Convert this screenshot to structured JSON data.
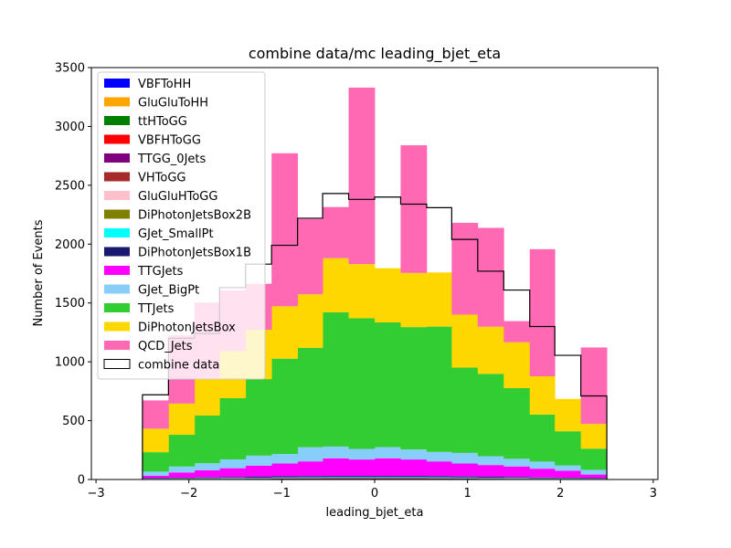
{
  "chart_data": {
    "type": "bar",
    "title": "combine data/mc leading_bjet_eta",
    "xlabel": "leading_bjet_eta",
    "ylabel": "Number of Events",
    "xlim": [
      -3.05,
      3.05
    ],
    "ylim": [
      0,
      3500
    ],
    "xticks": [
      -3,
      -2,
      -1,
      0,
      1,
      2,
      3
    ],
    "xtick_labels": [
      "−3",
      "−2",
      "−1",
      "0",
      "1",
      "2",
      "3"
    ],
    "yticks": [
      0,
      500,
      1000,
      1500,
      2000,
      2500,
      3000,
      3500
    ],
    "ytick_labels": [
      "0",
      "500",
      "1000",
      "1500",
      "2000",
      "2500",
      "3000",
      "3500"
    ],
    "bin_edges": [
      -2.5,
      -2.22,
      -1.94,
      -1.67,
      -1.39,
      -1.11,
      -0.83,
      -0.56,
      -0.28,
      0.0,
      0.28,
      0.56,
      0.83,
      1.11,
      1.39,
      1.67,
      1.94,
      2.22,
      2.5
    ],
    "stacked": true,
    "legend_position": "upper-left",
    "series": [
      {
        "name": "VBFToHH",
        "color": "#0000ff",
        "values": [
          0,
          0,
          0,
          0,
          0,
          0,
          0,
          0,
          0,
          0,
          0,
          0,
          0,
          0,
          0,
          0,
          0,
          0
        ]
      },
      {
        "name": "GluGluToHH",
        "color": "#ffa500",
        "values": [
          0,
          0,
          0,
          0,
          0,
          0,
          0,
          0,
          0,
          0,
          0,
          0,
          0,
          0,
          0,
          0,
          0,
          0
        ]
      },
      {
        "name": "ttHToGG",
        "color": "#008000",
        "values": [
          0,
          0,
          0,
          0,
          0,
          0,
          0,
          0,
          0,
          0,
          0,
          0,
          0,
          0,
          0,
          0,
          0,
          0
        ]
      },
      {
        "name": "VBFHToGG",
        "color": "#ff0000",
        "values": [
          0,
          0,
          0,
          0,
          0,
          0,
          0,
          0,
          0,
          0,
          0,
          0,
          0,
          0,
          0,
          0,
          0,
          0
        ]
      },
      {
        "name": "TTGG_0Jets",
        "color": "#800080",
        "values": [
          3,
          4,
          5,
          6,
          7,
          8,
          9,
          10,
          10,
          10,
          10,
          9,
          8,
          7,
          6,
          5,
          4,
          3
        ]
      },
      {
        "name": "VHToGG",
        "color": "#a52a2a",
        "values": [
          0,
          0,
          0,
          0,
          0,
          0,
          0,
          0,
          0,
          0,
          0,
          0,
          0,
          0,
          0,
          0,
          0,
          0
        ]
      },
      {
        "name": "GluGluHToGG",
        "color": "#ffc0cb",
        "values": [
          1,
          1,
          1,
          1,
          1,
          1,
          1,
          1,
          1,
          1,
          1,
          1,
          1,
          1,
          1,
          1,
          1,
          1
        ]
      },
      {
        "name": "DiPhotonJetsBox2B",
        "color": "#808000",
        "values": [
          2,
          2,
          3,
          3,
          3,
          4,
          4,
          4,
          4,
          4,
          4,
          4,
          3,
          3,
          3,
          2,
          2,
          2
        ]
      },
      {
        "name": "GJet_SmallPt",
        "color": "#00ffff",
        "values": [
          2,
          3,
          3,
          4,
          4,
          5,
          5,
          5,
          5,
          5,
          5,
          5,
          5,
          4,
          4,
          3,
          3,
          2
        ]
      },
      {
        "name": "DiPhotonJetsBox1B",
        "color": "#191970",
        "values": [
          4,
          5,
          6,
          7,
          8,
          9,
          10,
          10,
          10,
          10,
          10,
          10,
          9,
          8,
          7,
          6,
          5,
          4
        ]
      },
      {
        "name": "TTGJets",
        "color": "#ff00ff",
        "values": [
          20,
          45,
          60,
          75,
          95,
          110,
          125,
          150,
          140,
          150,
          140,
          125,
          110,
          100,
          90,
          75,
          60,
          30
        ]
      },
      {
        "name": "GJet_BigPt",
        "color": "#87cefa",
        "values": [
          35,
          50,
          60,
          75,
          85,
          80,
          120,
          100,
          90,
          95,
          85,
          80,
          90,
          75,
          65,
          60,
          45,
          40
        ]
      },
      {
        "name": "TTJets",
        "color": "#32cd32",
        "values": [
          165,
          270,
          405,
          520,
          650,
          810,
          845,
          1140,
          1110,
          1060,
          1040,
          1065,
          725,
          700,
          600,
          400,
          290,
          180
        ]
      },
      {
        "name": "DiPhotonJetsBox",
        "color": "#ffd700",
        "values": [
          200,
          265,
          320,
          400,
          420,
          445,
          455,
          460,
          460,
          460,
          460,
          460,
          450,
          400,
          390,
          325,
          275,
          210
        ]
      },
      {
        "name": "QCD_Jets",
        "color": "#ff69b4",
        "values": [
          240,
          580,
          640,
          515,
          390,
          1300,
          640,
          435,
          1500,
          0,
          1085,
          0,
          780,
          840,
          180,
          1080,
          0,
          650
        ]
      }
    ],
    "data_series": {
      "name": "combine data",
      "color": "#000000",
      "values": [
        720,
        1200,
        1240,
        1630,
        1830,
        1990,
        2220,
        2430,
        2380,
        2400,
        2340,
        2310,
        2040,
        1770,
        1610,
        1300,
        1055,
        710
      ]
    }
  }
}
